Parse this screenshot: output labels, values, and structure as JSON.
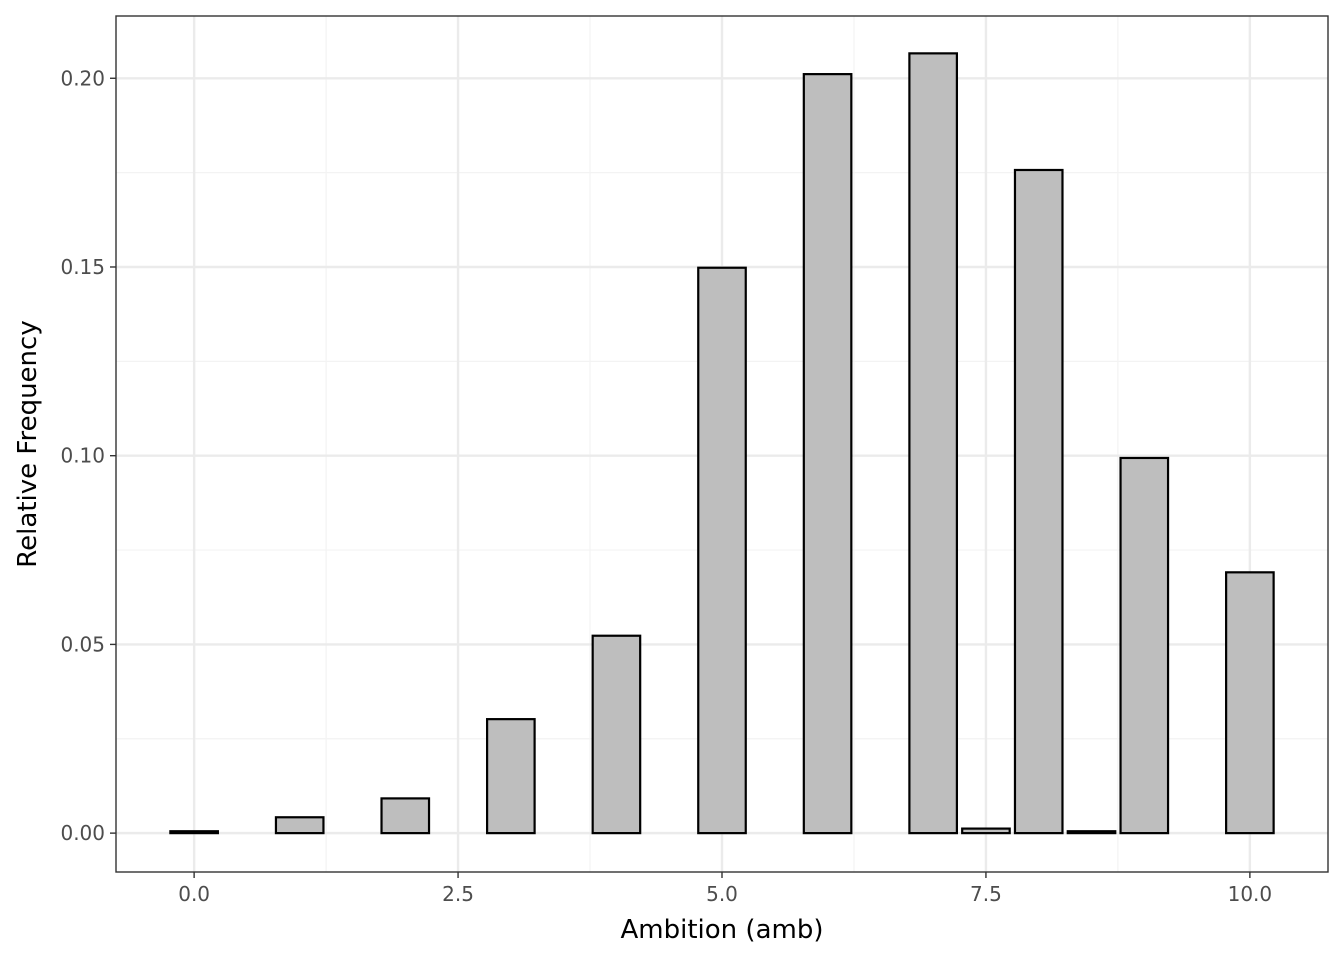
{
  "chart_data": {
    "type": "bar",
    "title": "",
    "xlabel": "Ambition (amb)",
    "ylabel": "Relative Frequency",
    "xlim": [
      -0.74,
      10.74
    ],
    "ylim": [
      -0.0103,
      0.2165
    ],
    "x_ticks": [
      0.0,
      2.5,
      5.0,
      7.5,
      10.0
    ],
    "x_tick_labels": [
      "0.0",
      "2.5",
      "5.0",
      "7.5",
      "10.0"
    ],
    "y_ticks": [
      0.0,
      0.05,
      0.1,
      0.15,
      0.2
    ],
    "y_tick_labels": [
      "0.00",
      "0.05",
      "0.10",
      "0.15",
      "0.20"
    ],
    "bar_width": 0.45,
    "grid": true,
    "legend": "none",
    "bars": [
      {
        "x": 0.0,
        "value": 0.0005
      },
      {
        "x": 1.0,
        "value": 0.0042
      },
      {
        "x": 2.0,
        "value": 0.0092
      },
      {
        "x": 3.0,
        "value": 0.0302
      },
      {
        "x": 4.0,
        "value": 0.0523
      },
      {
        "x": 5.0,
        "value": 0.1498
      },
      {
        "x": 6.0,
        "value": 0.2011
      },
      {
        "x": 7.0,
        "value": 0.2066
      },
      {
        "x": 7.5,
        "value": 0.0012
      },
      {
        "x": 8.0,
        "value": 0.1757
      },
      {
        "x": 8.5,
        "value": 0.0005
      },
      {
        "x": 9.0,
        "value": 0.0994
      },
      {
        "x": 10.0,
        "value": 0.0691
      }
    ],
    "colors": {
      "bar_fill": "#bebebe",
      "bar_stroke": "#000000",
      "grid_major": "#ebebeb",
      "grid_minor": "#f3f3f3",
      "panel_border": "#333333",
      "tick_text": "#4d4d4d",
      "axis_title": "#000000"
    }
  }
}
